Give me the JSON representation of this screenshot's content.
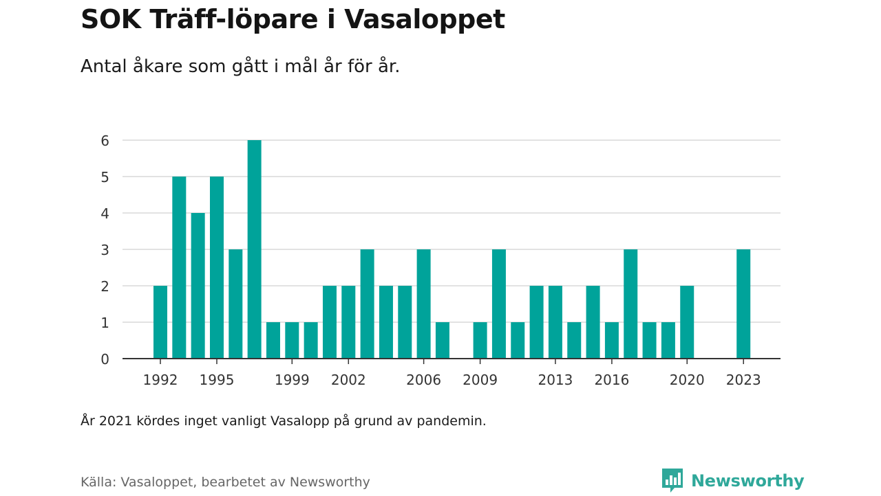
{
  "header": {
    "title": "SOK Träff-löpare i Vasaloppet",
    "subtitle": "Antal åkare som gått i mål år för år."
  },
  "footer": {
    "note": "År 2021 kördes inget vanligt Vasalopp på grund av pandemin.",
    "source": "Källa: Vasaloppet, bearbetet av Newsworthy",
    "brand": "Newsworthy",
    "brand_icon": "newsworthy-logo-icon"
  },
  "colors": {
    "bar": "#00a39a",
    "grid": "#d9d9d9",
    "axis": "#333333",
    "brand": "#2fa89a"
  },
  "chart_data": {
    "type": "bar",
    "title": "SOK Träff-löpare i Vasaloppet",
    "subtitle": "Antal åkare som gått i mål år för år.",
    "xlabel": "",
    "ylabel": "",
    "ylim": [
      0,
      6
    ],
    "yticks": [
      0,
      1,
      2,
      3,
      4,
      5,
      6
    ],
    "xticks": [
      1992,
      1995,
      1999,
      2002,
      2006,
      2009,
      2013,
      2016,
      2020,
      2023
    ],
    "x_range": [
      1992,
      2023
    ],
    "grid": true,
    "legend": "none",
    "categories": [
      1992,
      1993,
      1994,
      1995,
      1996,
      1997,
      1998,
      1999,
      2000,
      2001,
      2002,
      2003,
      2004,
      2005,
      2006,
      2007,
      2009,
      2010,
      2011,
      2012,
      2013,
      2014,
      2015,
      2016,
      2017,
      2018,
      2019,
      2020,
      2023
    ],
    "values": [
      2,
      5,
      4,
      5,
      3,
      6,
      1,
      1,
      1,
      2,
      2,
      3,
      2,
      2,
      3,
      1,
      1,
      3,
      1,
      2,
      2,
      1,
      2,
      1,
      3,
      1,
      1,
      2,
      3
    ]
  }
}
